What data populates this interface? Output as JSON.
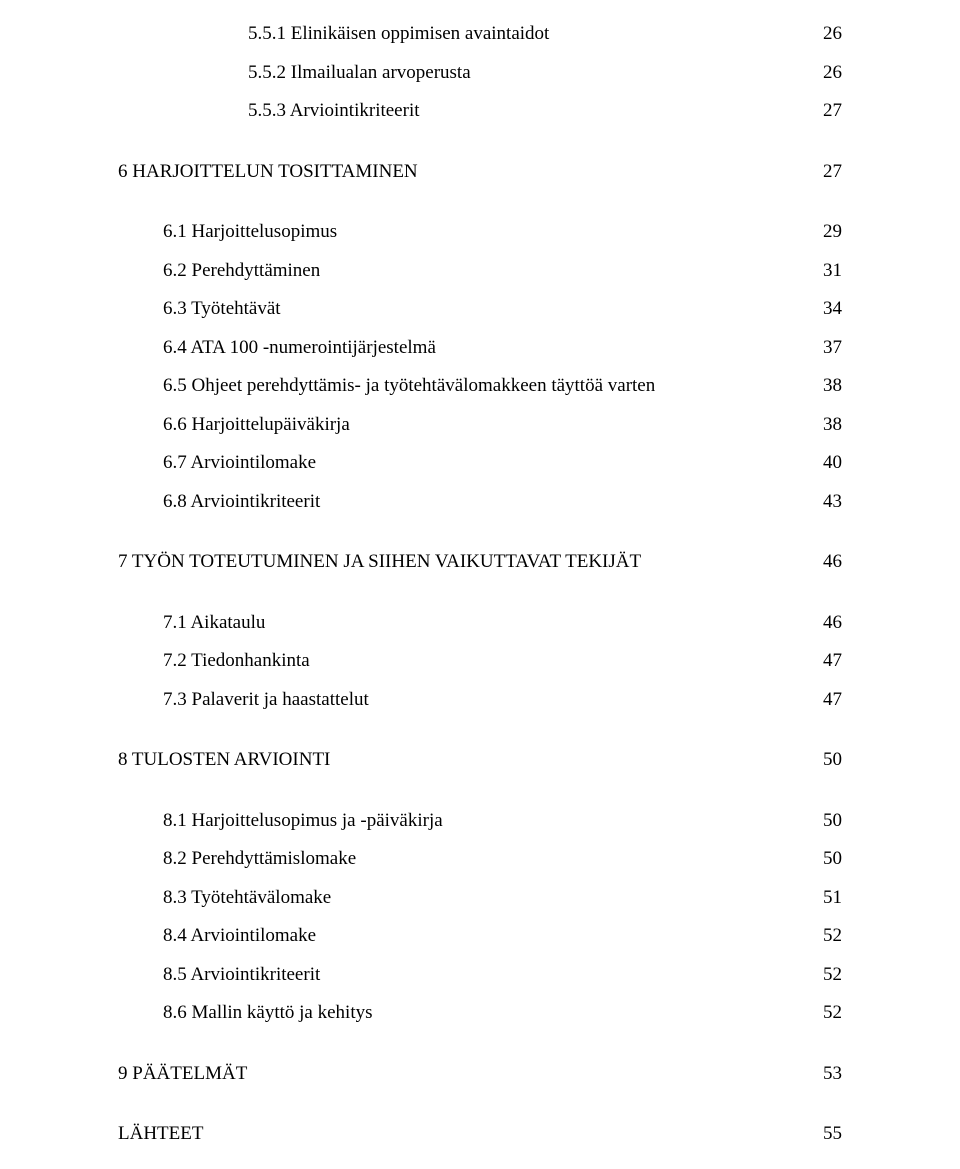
{
  "entries": [
    {
      "label": "5.5.1 Elinikäisen oppimisen avaintaidot",
      "page": "26",
      "indent": 2
    },
    {
      "label": "5.5.2 Ilmailualan arvoperusta",
      "page": "26",
      "indent": 2
    },
    {
      "label": "5.5.3 Arviointikriteerit",
      "page": "27",
      "indent": 2
    },
    {
      "gap": true
    },
    {
      "label": "6 HARJOITTELUN TOSITTAMINEN",
      "page": "27",
      "indent": 0
    },
    {
      "gap": true
    },
    {
      "label": "6.1 Harjoittelusopimus",
      "page": "29",
      "indent": 1
    },
    {
      "label": "6.2 Perehdyttäminen",
      "page": "31",
      "indent": 1
    },
    {
      "label": "6.3 Työtehtävät",
      "page": "34",
      "indent": 1
    },
    {
      "label": "6.4 ATA 100 -numerointijärjestelmä",
      "page": "37",
      "indent": 1
    },
    {
      "label": "6.5 Ohjeet perehdyttämis- ja työtehtävälomakkeen täyttöä varten",
      "page": "38",
      "indent": 1
    },
    {
      "label": "6.6 Harjoittelupäiväkirja",
      "page": "38",
      "indent": 1
    },
    {
      "label": "6.7 Arviointilomake",
      "page": "40",
      "indent": 1
    },
    {
      "label": "6.8 Arviointikriteerit",
      "page": "43",
      "indent": 1
    },
    {
      "gap": true
    },
    {
      "label": "7 TYÖN TOTEUTUMINEN JA SIIHEN VAIKUTTAVAT TEKIJÄT",
      "page": "46",
      "indent": 0
    },
    {
      "gap": true
    },
    {
      "label": "7.1 Aikataulu",
      "page": "46",
      "indent": 1
    },
    {
      "label": "7.2 Tiedonhankinta",
      "page": "47",
      "indent": 1
    },
    {
      "label": "7.3 Palaverit ja haastattelut",
      "page": "47",
      "indent": 1
    },
    {
      "gap": true
    },
    {
      "label": "8 TULOSTEN ARVIOINTI",
      "page": "50",
      "indent": 0
    },
    {
      "gap": true
    },
    {
      "label": "8.1 Harjoittelusopimus ja -päiväkirja",
      "page": "50",
      "indent": 1
    },
    {
      "label": "8.2 Perehdyttämislomake",
      "page": "50",
      "indent": 1
    },
    {
      "label": "8.3 Työtehtävälomake",
      "page": "51",
      "indent": 1
    },
    {
      "label": "8.4 Arviointilomake",
      "page": "52",
      "indent": 1
    },
    {
      "label": "8.5 Arviointikriteerit",
      "page": "52",
      "indent": 1
    },
    {
      "label": "8.6 Mallin käyttö ja kehitys",
      "page": "52",
      "indent": 1
    },
    {
      "gap": true
    },
    {
      "label": "9 PÄÄTELMÄT",
      "page": "53",
      "indent": 0
    },
    {
      "gap": true
    },
    {
      "label": "LÄHTEET",
      "page": "55",
      "indent": 0
    }
  ]
}
